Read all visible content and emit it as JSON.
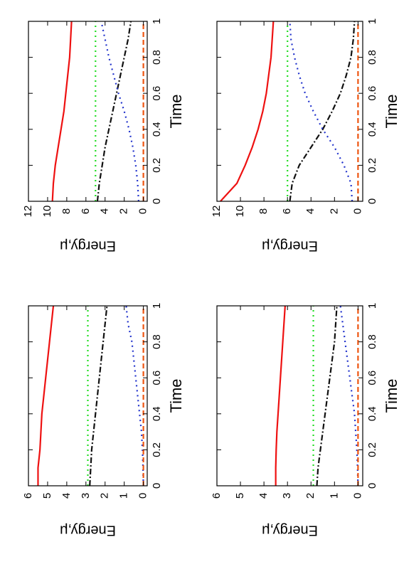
{
  "chart_data": [
    {
      "type": "line",
      "xlabel": "Time",
      "ylabel": "Energy,μ",
      "x": [
        0,
        0.1,
        0.2,
        0.3,
        0.4,
        0.5,
        0.6,
        0.7,
        0.8,
        0.9,
        1
      ],
      "xlim": [
        0,
        1
      ],
      "xticks": [
        0,
        0.2,
        0.4,
        0.6,
        0.8,
        1
      ],
      "ylim": [
        -0.4,
        12
      ],
      "yticks": [
        0,
        2,
        4,
        6,
        8,
        10,
        12
      ],
      "series": [
        {
          "color": "#ee1111",
          "style": "solid",
          "values": [
            9.5,
            9.4,
            9.2,
            8.9,
            8.6,
            8.3,
            8.1,
            7.9,
            7.7,
            7.6,
            7.5
          ]
        },
        {
          "color": "#22dd22",
          "style": "dotted",
          "values": [
            5,
            5,
            5,
            5,
            5,
            5,
            5,
            5,
            5,
            5,
            5
          ]
        },
        {
          "color": "#111111",
          "style": "dashdot",
          "values": [
            4.8,
            4.6,
            4.3,
            4.0,
            3.6,
            3.2,
            2.8,
            2.4,
            2.0,
            1.6,
            1.3
          ]
        },
        {
          "color": "#2233cc",
          "style": "dotted",
          "values": [
            0.5,
            0.6,
            0.8,
            1.1,
            1.5,
            2.0,
            2.6,
            3.1,
            3.6,
            4.0,
            4.4
          ]
        },
        {
          "color": "#ee5511",
          "style": "dashed",
          "values": [
            0,
            0,
            0,
            0,
            0,
            0,
            0,
            0,
            0,
            0,
            0
          ]
        }
      ]
    },
    {
      "type": "line",
      "xlabel": "Time",
      "ylabel": "Energy,μ",
      "x": [
        0,
        0.1,
        0.2,
        0.3,
        0.4,
        0.5,
        0.6,
        0.7,
        0.8,
        0.9,
        1
      ],
      "xlim": [
        0,
        1
      ],
      "xticks": [
        0,
        0.2,
        0.4,
        0.6,
        0.8,
        1
      ],
      "ylim": [
        -0.4,
        12
      ],
      "yticks": [
        0,
        2,
        4,
        6,
        8,
        10,
        12
      ],
      "series": [
        {
          "color": "#ee1111",
          "style": "solid",
          "values": [
            11.7,
            10.3,
            9.6,
            9.0,
            8.5,
            8.1,
            7.8,
            7.6,
            7.4,
            7.3,
            7.2
          ]
        },
        {
          "color": "#22dd22",
          "style": "dotted",
          "values": [
            6,
            6,
            6,
            6,
            6,
            6,
            6,
            6,
            6,
            6,
            6
          ]
        },
        {
          "color": "#111111",
          "style": "dashdot",
          "values": [
            5.8,
            5.6,
            5.0,
            4.0,
            3.0,
            2.2,
            1.5,
            1.0,
            0.6,
            0.4,
            0.3
          ]
        },
        {
          "color": "#2233cc",
          "style": "dotted",
          "values": [
            0.5,
            0.6,
            1.2,
            2.0,
            3.0,
            3.8,
            4.5,
            5.0,
            5.4,
            5.7,
            5.8
          ]
        },
        {
          "color": "#ee5511",
          "style": "dashed",
          "values": [
            0,
            0,
            0,
            0,
            0,
            0,
            0,
            0,
            0,
            0,
            0
          ]
        }
      ]
    },
    {
      "type": "line",
      "xlabel": "Time",
      "ylabel": "Energy,μ",
      "x": [
        0,
        0.1,
        0.2,
        0.3,
        0.4,
        0.5,
        0.6,
        0.7,
        0.8,
        0.9,
        1
      ],
      "xlim": [
        0,
        1
      ],
      "xticks": [
        0,
        0.2,
        0.4,
        0.6,
        0.8,
        1
      ],
      "ylim": [
        -0.2,
        6
      ],
      "yticks": [
        0,
        1,
        2,
        3,
        4,
        5,
        6
      ],
      "series": [
        {
          "color": "#ee1111",
          "style": "solid",
          "values": [
            5.5,
            5.5,
            5.4,
            5.35,
            5.3,
            5.2,
            5.1,
            5.0,
            4.9,
            4.8,
            4.7
          ]
        },
        {
          "color": "#22dd22",
          "style": "dotted",
          "values": [
            2.9,
            2.9,
            2.9,
            2.9,
            2.9,
            2.9,
            2.9,
            2.9,
            2.9,
            2.9,
            2.9
          ]
        },
        {
          "color": "#111111",
          "style": "dashdot",
          "values": [
            2.8,
            2.75,
            2.7,
            2.6,
            2.5,
            2.4,
            2.3,
            2.2,
            2.1,
            2.0,
            1.9
          ]
        },
        {
          "color": "#2233cc",
          "style": "dotted",
          "values": [
            0,
            0.02,
            0.05,
            0.1,
            0.2,
            0.3,
            0.4,
            0.5,
            0.6,
            0.8,
            0.9
          ]
        },
        {
          "color": "#ee5511",
          "style": "dashed",
          "values": [
            0,
            0,
            0,
            0,
            0,
            0,
            0,
            0,
            0,
            0,
            0
          ]
        }
      ]
    },
    {
      "type": "line",
      "xlabel": "Time",
      "ylabel": "Energy,μ",
      "x": [
        0,
        0.1,
        0.2,
        0.3,
        0.4,
        0.5,
        0.6,
        0.7,
        0.8,
        0.9,
        1
      ],
      "xlim": [
        0,
        1
      ],
      "xticks": [
        0,
        0.2,
        0.4,
        0.6,
        0.8,
        1
      ],
      "ylim": [
        -0.2,
        6
      ],
      "yticks": [
        0,
        1,
        2,
        3,
        4,
        5,
        6
      ],
      "series": [
        {
          "color": "#ee1111",
          "style": "solid",
          "values": [
            3.5,
            3.5,
            3.48,
            3.45,
            3.4,
            3.35,
            3.3,
            3.25,
            3.2,
            3.15,
            3.1
          ]
        },
        {
          "color": "#22dd22",
          "style": "dotted",
          "values": [
            1.9,
            1.9,
            1.9,
            1.9,
            1.9,
            1.9,
            1.9,
            1.9,
            1.9,
            1.9,
            1.9
          ]
        },
        {
          "color": "#111111",
          "style": "dashdot",
          "values": [
            1.75,
            1.7,
            1.6,
            1.5,
            1.4,
            1.3,
            1.2,
            1.1,
            1.0,
            0.95,
            0.9
          ]
        },
        {
          "color": "#2233cc",
          "style": "dotted",
          "values": [
            0,
            0.02,
            0.05,
            0.1,
            0.15,
            0.25,
            0.35,
            0.45,
            0.55,
            0.65,
            0.75
          ]
        },
        {
          "color": "#ee5511",
          "style": "dashed",
          "values": [
            0,
            0,
            0,
            0,
            0,
            0,
            0,
            0,
            0,
            0,
            0
          ]
        }
      ]
    }
  ]
}
